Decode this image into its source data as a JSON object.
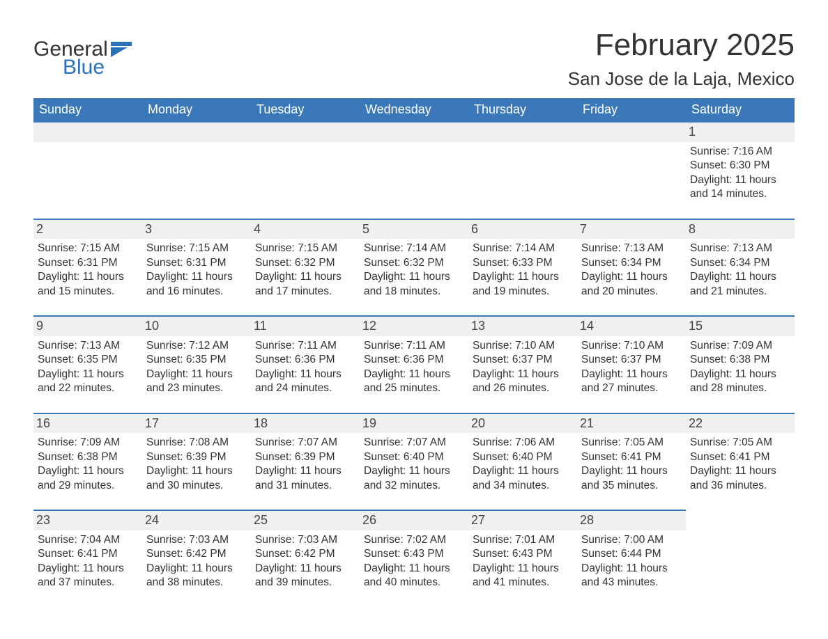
{
  "logo": {
    "word1": "General",
    "word2": "Blue"
  },
  "title": "February 2025",
  "location": "San Jose de la Laja, Mexico",
  "colors": {
    "header_bg": "#3a78b9",
    "header_text": "#ffffff",
    "daynum_bg": "#f0f0f0",
    "daynum_border": "#3a78b9",
    "text": "#333333",
    "logo_blue": "#2b71b8"
  },
  "days_of_week": [
    "Sunday",
    "Monday",
    "Tuesday",
    "Wednesday",
    "Thursday",
    "Friday",
    "Saturday"
  ],
  "weeks": [
    [
      null,
      null,
      null,
      null,
      null,
      null,
      {
        "n": "1",
        "sunrise": "Sunrise: 7:16 AM",
        "sunset": "Sunset: 6:30 PM",
        "daylight": "Daylight: 11 hours and 14 minutes."
      }
    ],
    [
      {
        "n": "2",
        "sunrise": "Sunrise: 7:15 AM",
        "sunset": "Sunset: 6:31 PM",
        "daylight": "Daylight: 11 hours and 15 minutes."
      },
      {
        "n": "3",
        "sunrise": "Sunrise: 7:15 AM",
        "sunset": "Sunset: 6:31 PM",
        "daylight": "Daylight: 11 hours and 16 minutes."
      },
      {
        "n": "4",
        "sunrise": "Sunrise: 7:15 AM",
        "sunset": "Sunset: 6:32 PM",
        "daylight": "Daylight: 11 hours and 17 minutes."
      },
      {
        "n": "5",
        "sunrise": "Sunrise: 7:14 AM",
        "sunset": "Sunset: 6:32 PM",
        "daylight": "Daylight: 11 hours and 18 minutes."
      },
      {
        "n": "6",
        "sunrise": "Sunrise: 7:14 AM",
        "sunset": "Sunset: 6:33 PM",
        "daylight": "Daylight: 11 hours and 19 minutes."
      },
      {
        "n": "7",
        "sunrise": "Sunrise: 7:13 AM",
        "sunset": "Sunset: 6:34 PM",
        "daylight": "Daylight: 11 hours and 20 minutes."
      },
      {
        "n": "8",
        "sunrise": "Sunrise: 7:13 AM",
        "sunset": "Sunset: 6:34 PM",
        "daylight": "Daylight: 11 hours and 21 minutes."
      }
    ],
    [
      {
        "n": "9",
        "sunrise": "Sunrise: 7:13 AM",
        "sunset": "Sunset: 6:35 PM",
        "daylight": "Daylight: 11 hours and 22 minutes."
      },
      {
        "n": "10",
        "sunrise": "Sunrise: 7:12 AM",
        "sunset": "Sunset: 6:35 PM",
        "daylight": "Daylight: 11 hours and 23 minutes."
      },
      {
        "n": "11",
        "sunrise": "Sunrise: 7:11 AM",
        "sunset": "Sunset: 6:36 PM",
        "daylight": "Daylight: 11 hours and 24 minutes."
      },
      {
        "n": "12",
        "sunrise": "Sunrise: 7:11 AM",
        "sunset": "Sunset: 6:36 PM",
        "daylight": "Daylight: 11 hours and 25 minutes."
      },
      {
        "n": "13",
        "sunrise": "Sunrise: 7:10 AM",
        "sunset": "Sunset: 6:37 PM",
        "daylight": "Daylight: 11 hours and 26 minutes."
      },
      {
        "n": "14",
        "sunrise": "Sunrise: 7:10 AM",
        "sunset": "Sunset: 6:37 PM",
        "daylight": "Daylight: 11 hours and 27 minutes."
      },
      {
        "n": "15",
        "sunrise": "Sunrise: 7:09 AM",
        "sunset": "Sunset: 6:38 PM",
        "daylight": "Daylight: 11 hours and 28 minutes."
      }
    ],
    [
      {
        "n": "16",
        "sunrise": "Sunrise: 7:09 AM",
        "sunset": "Sunset: 6:38 PM",
        "daylight": "Daylight: 11 hours and 29 minutes."
      },
      {
        "n": "17",
        "sunrise": "Sunrise: 7:08 AM",
        "sunset": "Sunset: 6:39 PM",
        "daylight": "Daylight: 11 hours and 30 minutes."
      },
      {
        "n": "18",
        "sunrise": "Sunrise: 7:07 AM",
        "sunset": "Sunset: 6:39 PM",
        "daylight": "Daylight: 11 hours and 31 minutes."
      },
      {
        "n": "19",
        "sunrise": "Sunrise: 7:07 AM",
        "sunset": "Sunset: 6:40 PM",
        "daylight": "Daylight: 11 hours and 32 minutes."
      },
      {
        "n": "20",
        "sunrise": "Sunrise: 7:06 AM",
        "sunset": "Sunset: 6:40 PM",
        "daylight": "Daylight: 11 hours and 34 minutes."
      },
      {
        "n": "21",
        "sunrise": "Sunrise: 7:05 AM",
        "sunset": "Sunset: 6:41 PM",
        "daylight": "Daylight: 11 hours and 35 minutes."
      },
      {
        "n": "22",
        "sunrise": "Sunrise: 7:05 AM",
        "sunset": "Sunset: 6:41 PM",
        "daylight": "Daylight: 11 hours and 36 minutes."
      }
    ],
    [
      {
        "n": "23",
        "sunrise": "Sunrise: 7:04 AM",
        "sunset": "Sunset: 6:41 PM",
        "daylight": "Daylight: 11 hours and 37 minutes."
      },
      {
        "n": "24",
        "sunrise": "Sunrise: 7:03 AM",
        "sunset": "Sunset: 6:42 PM",
        "daylight": "Daylight: 11 hours and 38 minutes."
      },
      {
        "n": "25",
        "sunrise": "Sunrise: 7:03 AM",
        "sunset": "Sunset: 6:42 PM",
        "daylight": "Daylight: 11 hours and 39 minutes."
      },
      {
        "n": "26",
        "sunrise": "Sunrise: 7:02 AM",
        "sunset": "Sunset: 6:43 PM",
        "daylight": "Daylight: 11 hours and 40 minutes."
      },
      {
        "n": "27",
        "sunrise": "Sunrise: 7:01 AM",
        "sunset": "Sunset: 6:43 PM",
        "daylight": "Daylight: 11 hours and 41 minutes."
      },
      {
        "n": "28",
        "sunrise": "Sunrise: 7:00 AM",
        "sunset": "Sunset: 6:44 PM",
        "daylight": "Daylight: 11 hours and 43 minutes."
      },
      null
    ]
  ]
}
